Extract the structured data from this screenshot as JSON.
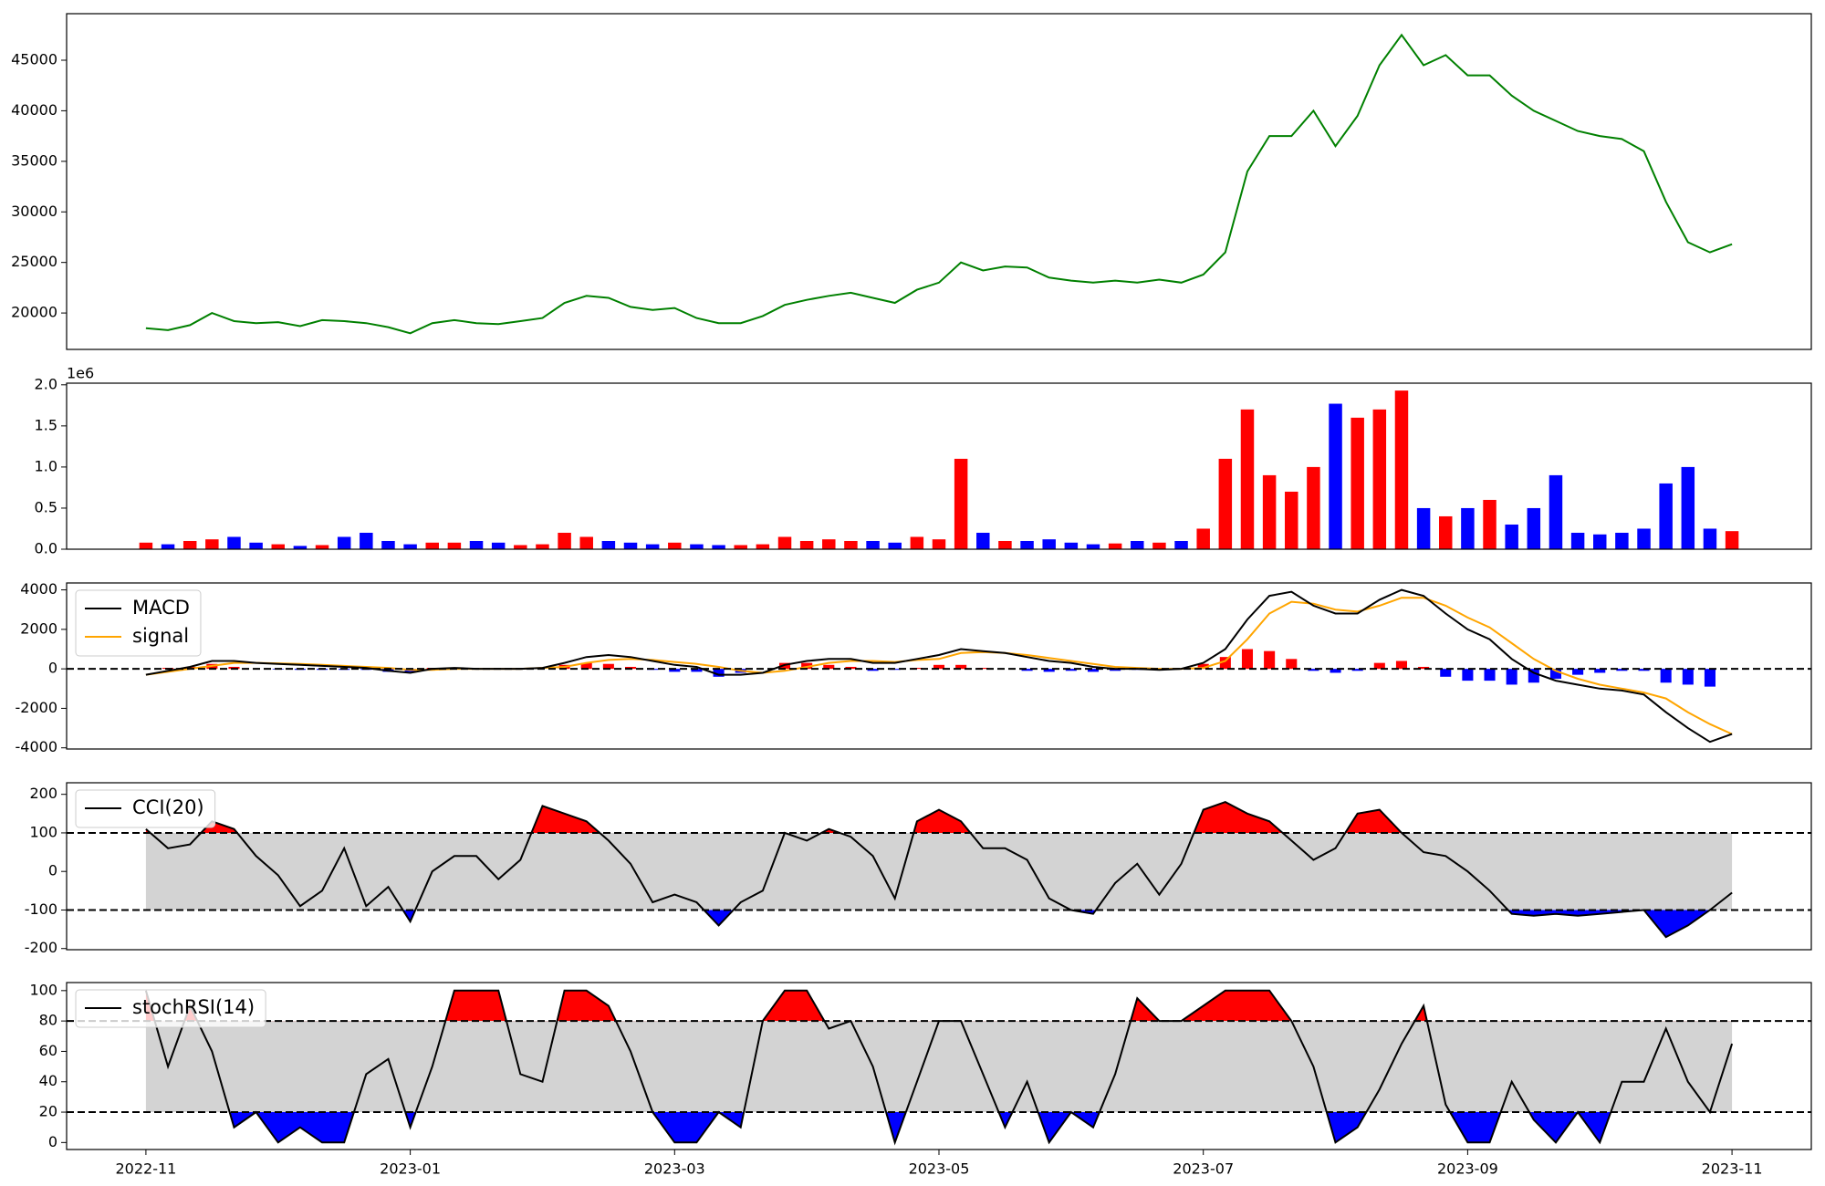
{
  "chart_data": [
    {
      "type": "line",
      "color": "green",
      "values": [
        18500,
        18300,
        18800,
        20000,
        19200,
        19000,
        19100,
        18700,
        19300,
        19200,
        19000,
        18600,
        18000,
        19000,
        19300,
        19000,
        18900,
        19200,
        19500,
        21000,
        21700,
        21500,
        20600,
        20300,
        20500,
        19500,
        19000,
        19000,
        19700,
        20800,
        21300,
        21700,
        22000,
        21500,
        21000,
        22300,
        23000,
        25000,
        24200,
        24600,
        24500,
        23500,
        23200,
        23000,
        23200,
        23000,
        23300,
        23000,
        23800,
        26000,
        34000,
        37500,
        37500,
        40000,
        36500,
        39500,
        44500,
        47500,
        44500,
        45500,
        43500,
        43500,
        41500,
        40000,
        39000,
        38000,
        37500,
        37200,
        36000,
        31000,
        27000,
        26000,
        26800
      ],
      "ylim": [
        16400,
        49600
      ],
      "yticks": [
        20000,
        25000,
        30000,
        35000,
        40000,
        45000
      ]
    },
    {
      "type": "bar",
      "up_color": "red",
      "down_color": "blue",
      "offset_label": "1e6",
      "values": [
        80000,
        60000,
        100000,
        120000,
        150000,
        80000,
        60000,
        40000,
        50000,
        150000,
        200000,
        100000,
        60000,
        80000,
        80000,
        100000,
        80000,
        50000,
        60000,
        200000,
        150000,
        100000,
        80000,
        60000,
        80000,
        60000,
        50000,
        50000,
        60000,
        150000,
        100000,
        120000,
        100000,
        100000,
        80000,
        150000,
        120000,
        1100000,
        200000,
        100000,
        100000,
        120000,
        80000,
        60000,
        70000,
        100000,
        80000,
        100000,
        250000,
        1100000,
        1700000,
        900000,
        700000,
        1000000,
        1770000,
        1600000,
        1700000,
        1930000,
        500000,
        400000,
        500000,
        600000,
        300000,
        500000,
        900000,
        200000,
        180000,
        200000,
        250000,
        800000,
        1000000,
        250000,
        220000
      ],
      "ylim": [
        0,
        2020000
      ],
      "yticks": [
        {
          "value": 0,
          "label": "0.0"
        },
        {
          "value": 500000,
          "label": "0.5"
        },
        {
          "value": 1000000,
          "label": "1.0"
        },
        {
          "value": 1500000,
          "label": "1.5"
        },
        {
          "value": 2000000,
          "label": "2.0"
        }
      ]
    },
    {
      "type": "macd",
      "legend": "upper left",
      "hlines": [
        0
      ],
      "series": [
        {
          "name": "MACD",
          "color": "black",
          "values": [
            -300,
            -100,
            100,
            400,
            400,
            300,
            250,
            200,
            150,
            100,
            50,
            -100,
            -200,
            0,
            50,
            0,
            0,
            0,
            50,
            300,
            600,
            700,
            600,
            400,
            200,
            100,
            -300,
            -300,
            -200,
            200,
            400,
            500,
            500,
            300,
            300,
            500,
            700,
            1000,
            900,
            800,
            600,
            400,
            300,
            100,
            0,
            0,
            -50,
            0,
            300,
            1000,
            2500,
            3700,
            3900,
            3200,
            2800,
            2800,
            3500,
            4000,
            3700,
            2800,
            2000,
            1500,
            500,
            -200,
            -600,
            -800,
            -1000,
            -1100,
            -1300,
            -2200,
            -3000,
            -3700,
            -3300
          ]
        },
        {
          "name": "signal",
          "color": "orange",
          "values": [
            -300,
            -150,
            0,
            150,
            300,
            300,
            280,
            250,
            200,
            150,
            100,
            50,
            -50,
            -50,
            0,
            0,
            0,
            0,
            50,
            100,
            300,
            450,
            500,
            450,
            350,
            250,
            100,
            -100,
            -200,
            -100,
            100,
            300,
            400,
            400,
            350,
            450,
            500,
            800,
            850,
            800,
            700,
            550,
            400,
            250,
            100,
            50,
            0,
            0,
            50,
            400,
            1500,
            2800,
            3400,
            3300,
            3000,
            2900,
            3200,
            3600,
            3600,
            3200,
            2600,
            2100,
            1300,
            500,
            -100,
            -500,
            -800,
            -1000,
            -1200,
            -1500,
            -2200,
            -2800,
            -3300
          ]
        }
      ],
      "histogram": {
        "up_color": "red",
        "down_color": "blue",
        "values": [
          0,
          50,
          100,
          250,
          100,
          0,
          -30,
          -50,
          -50,
          -50,
          -50,
          -150,
          -150,
          50,
          50,
          0,
          0,
          0,
          0,
          200,
          300,
          250,
          100,
          -50,
          -150,
          -150,
          -400,
          -200,
          0,
          300,
          300,
          200,
          100,
          -100,
          -50,
          50,
          200,
          200,
          50,
          0,
          -100,
          -150,
          -100,
          -150,
          -100,
          -50,
          -50,
          0,
          250,
          600,
          1000,
          900,
          500,
          -100,
          -200,
          -100,
          300,
          400,
          100,
          -400,
          -600,
          -600,
          -800,
          -700,
          -500,
          -300,
          -200,
          -100,
          -100,
          -700,
          -800,
          -900,
          0
        ]
      },
      "ylim": [
        -4060,
        4350
      ],
      "yticks": [
        -4000,
        -2000,
        0,
        2000,
        4000
      ]
    },
    {
      "type": "oscillator",
      "legend": "upper left",
      "hlines": [
        100,
        -100
      ],
      "band_color": "lightgray",
      "above_color": "red",
      "below_color": "blue",
      "series": [
        {
          "name": "CCI(20)",
          "color": "black",
          "values": [
            110,
            60,
            70,
            130,
            110,
            40,
            -10,
            -90,
            -50,
            60,
            -90,
            -40,
            -130,
            0,
            40,
            40,
            -20,
            30,
            170,
            150,
            130,
            80,
            20,
            -80,
            -60,
            -80,
            -140,
            -80,
            -50,
            100,
            80,
            110,
            90,
            40,
            -70,
            130,
            160,
            130,
            60,
            60,
            30,
            -70,
            -100,
            -110,
            -30,
            20,
            -60,
            20,
            160,
            180,
            150,
            130,
            80,
            30,
            60,
            150,
            160,
            100,
            50,
            40,
            0,
            -50,
            -110,
            -115,
            -110,
            -115,
            -110,
            -105,
            -100,
            -170,
            -140,
            -100,
            -55
          ]
        }
      ],
      "ylim": [
        -203,
        230
      ],
      "yticks": [
        -200,
        -100,
        0,
        100,
        200
      ]
    },
    {
      "type": "oscillator",
      "legend": "upper left",
      "hlines": [
        80,
        20
      ],
      "band_color": "lightgray",
      "above_color": "red",
      "below_color": "blue",
      "series": [
        {
          "name": "stochRSI(14)",
          "color": "black",
          "values": [
            100,
            50,
            90,
            60,
            10,
            20,
            0,
            10,
            0,
            0,
            45,
            55,
            10,
            50,
            100,
            100,
            100,
            45,
            40,
            100,
            100,
            90,
            60,
            20,
            0,
            0,
            20,
            10,
            80,
            100,
            100,
            75,
            80,
            50,
            0,
            40,
            80,
            80,
            45,
            10,
            40,
            0,
            20,
            10,
            45,
            95,
            80,
            80,
            90,
            100,
            100,
            100,
            80,
            50,
            0,
            10,
            35,
            65,
            90,
            25,
            0,
            0,
            40,
            15,
            0,
            20,
            0,
            40,
            40,
            75,
            40,
            20,
            65
          ]
        }
      ],
      "ylim": [
        -4.6,
        105.3
      ],
      "yticks": [
        0,
        20,
        40,
        60,
        80,
        100
      ],
      "categories": [
        "2022-11",
        null,
        null,
        null,
        null,
        null,
        null,
        null,
        null,
        null,
        null,
        null,
        "2023-01",
        null,
        null,
        null,
        null,
        null,
        null,
        null,
        null,
        null,
        null,
        null,
        "2023-03",
        null,
        null,
        null,
        null,
        null,
        null,
        null,
        null,
        null,
        null,
        null,
        "2023-05",
        null,
        null,
        null,
        null,
        null,
        null,
        null,
        null,
        null,
        null,
        null,
        "2023-07",
        null,
        null,
        null,
        null,
        null,
        null,
        null,
        null,
        null,
        null,
        null,
        "2023-09",
        null,
        null,
        null,
        null,
        null,
        null,
        null,
        null,
        null,
        null,
        null,
        "2023-11"
      ]
    }
  ]
}
